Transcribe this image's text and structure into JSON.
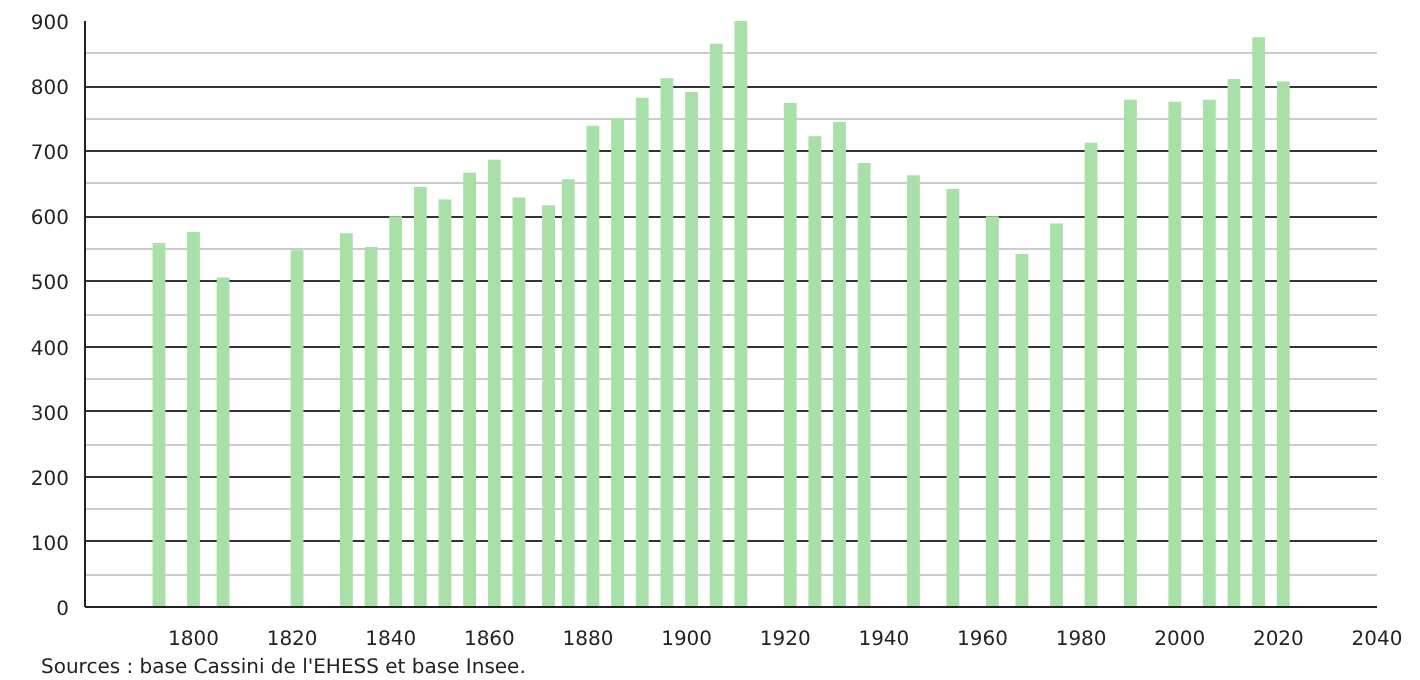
{
  "chart_data": {
    "type": "bar",
    "x": [
      1793,
      1800,
      1806,
      1821,
      1831,
      1836,
      1841,
      1846,
      1851,
      1856,
      1861,
      1866,
      1872,
      1876,
      1881,
      1886,
      1891,
      1896,
      1901,
      1906,
      1911,
      1921,
      1926,
      1931,
      1936,
      1946,
      1954,
      1962,
      1968,
      1975,
      1982,
      1990,
      1999,
      2006,
      2011,
      2016,
      2021
    ],
    "values": [
      559,
      576,
      506,
      548,
      574,
      553,
      600,
      645,
      626,
      667,
      687,
      629,
      617,
      657,
      739,
      750,
      782,
      812,
      791,
      865,
      900,
      774,
      723,
      745,
      682,
      663,
      642,
      600,
      542,
      589,
      713,
      779,
      776,
      779,
      811,
      875,
      807
    ],
    "color": "#a8e0a8",
    "xlim": [
      1778,
      2040
    ],
    "xticks": [
      1800,
      1820,
      1840,
      1860,
      1880,
      1900,
      1920,
      1940,
      1960,
      1980,
      2000,
      2020,
      2040
    ],
    "ylim": [
      0,
      900
    ],
    "yticks": [
      0,
      100,
      200,
      300,
      400,
      500,
      600,
      700,
      800,
      900
    ],
    "grid": "y",
    "annotations": [
      "Sources : base Cassini de l'EHESS et base Insee."
    ]
  }
}
